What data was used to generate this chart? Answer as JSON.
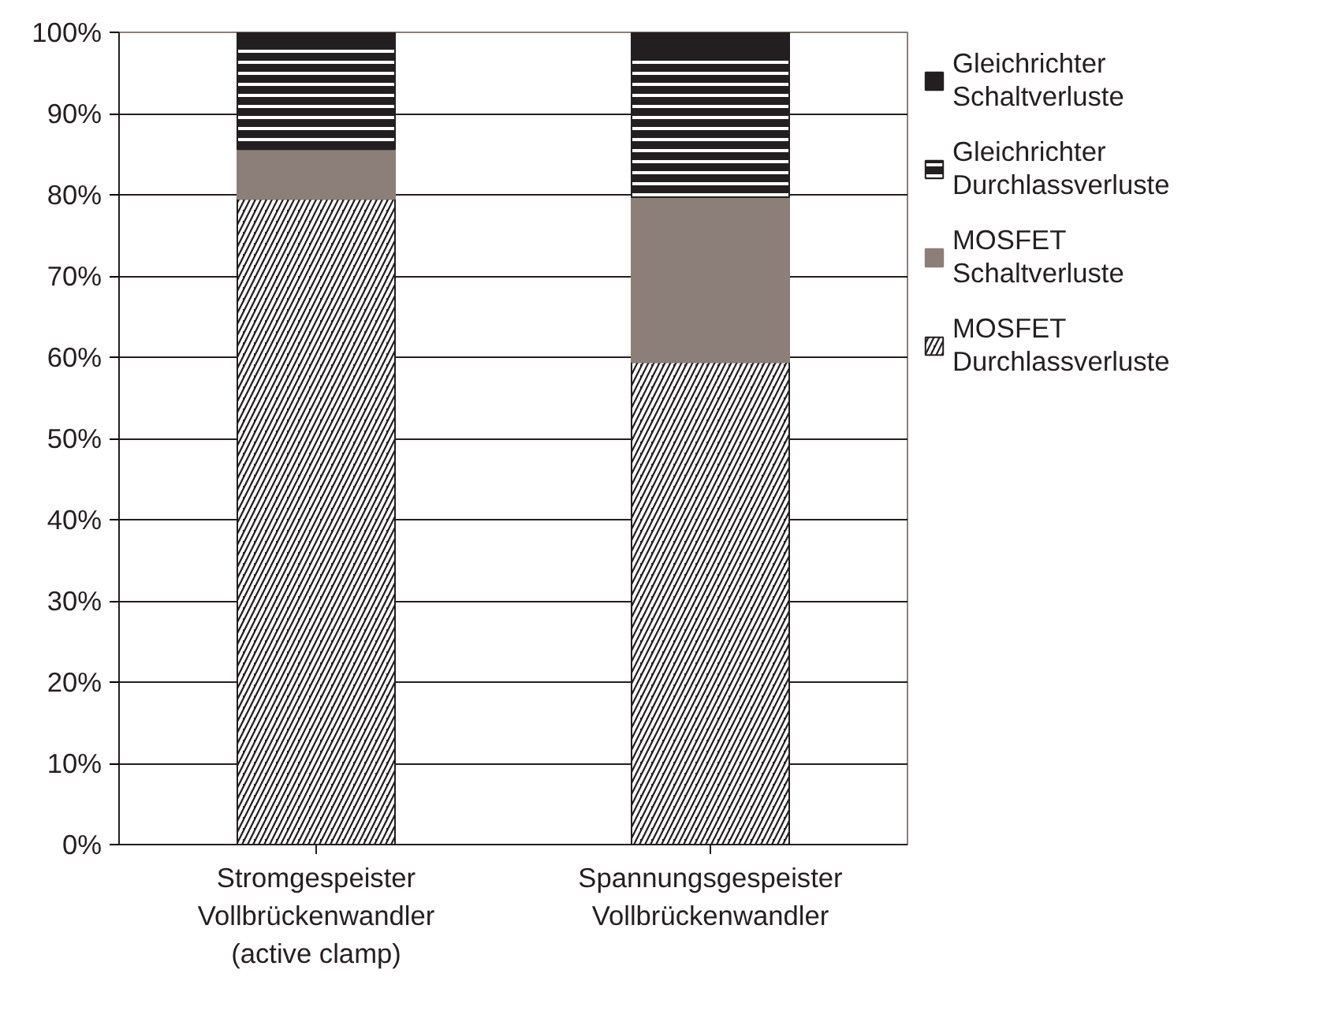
{
  "chart_data": {
    "type": "bar",
    "stacked": true,
    "categories": [
      "Stromgespeister\nVollbrückenwandler\n(active clamp)",
      "Spannungsgespeister\nVollbrückenwandler"
    ],
    "series": [
      {
        "name": "MOSFET\nDurchlassverluste",
        "color": "#231f20",
        "values": [
          79.5,
          59.4
        ]
      },
      {
        "name": "MOSFET\nSchaltverluste",
        "color": "#8c7f7a",
        "values": [
          6.1,
          20.3
        ]
      },
      {
        "name": "Gleichrichter\nDurchlassverluste",
        "color": "#231f20",
        "values": [
          13.2,
          17.5
        ]
      },
      {
        "name": "Gleichrichter\nSchaltverluste",
        "color": "#231f20",
        "values": [
          1.2,
          2.8
        ]
      }
    ],
    "ylim": [
      0,
      100
    ],
    "yticks": [
      {
        "value": 0,
        "label": "0%"
      },
      {
        "value": 10,
        "label": "10%"
      },
      {
        "value": 20,
        "label": "20%"
      },
      {
        "value": 30,
        "label": "30%"
      },
      {
        "value": 40,
        "label": "40%"
      },
      {
        "value": 50,
        "label": "50%"
      },
      {
        "value": 60,
        "label": "60%"
      },
      {
        "value": 70,
        "label": "70%"
      },
      {
        "value": 80,
        "label": "80%"
      },
      {
        "value": 90,
        "label": "90%"
      },
      {
        "value": 100,
        "label": "100%"
      }
    ],
    "grid": "y",
    "legend": "top right"
  }
}
